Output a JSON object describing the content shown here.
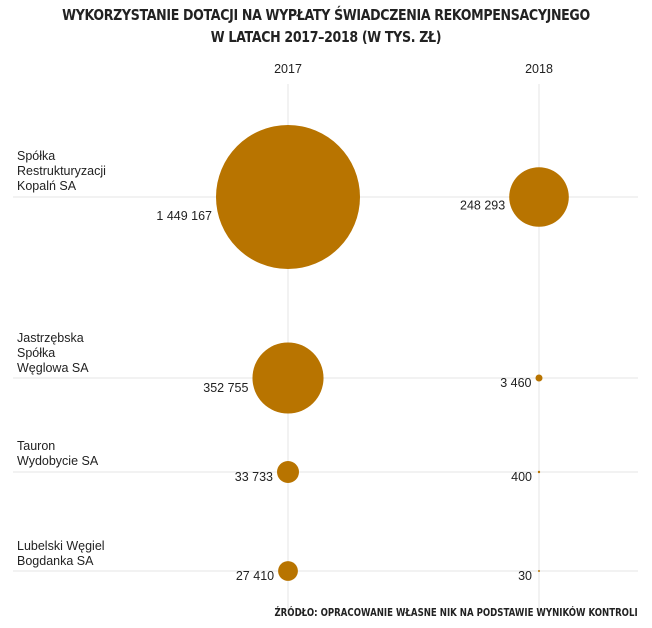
{
  "chart_data": {
    "type": "bubble",
    "title_lines": [
      "WYKORZYSTANIE DOTACJI NA WYPŁATY ŚWIADCZENIA REKOMPENSACYJNEGO",
      "W LATACH 2017–2018 (W TYS. ZŁ)"
    ],
    "columns": [
      "2017",
      "2018"
    ],
    "categories": [
      {
        "label_lines": [
          "Spółka",
          "Restrukturyzacji",
          "Kopalń SA"
        ],
        "values": [
          1449167,
          248293
        ],
        "value_labels": [
          "1 449 167",
          "248 293"
        ]
      },
      {
        "label_lines": [
          "Jastrzębska",
          "Spółka",
          "Węglowa SA"
        ],
        "values": [
          352755,
          3460
        ],
        "value_labels": [
          "352 755",
          "3 460"
        ]
      },
      {
        "label_lines": [
          "Tauron",
          "Wydobycie SA"
        ],
        "values": [
          33733,
          400
        ],
        "value_labels": [
          "33 733",
          "400"
        ]
      },
      {
        "label_lines": [
          "Lubelski Węgiel",
          "Bogdanka SA"
        ],
        "values": [
          27410,
          30
        ],
        "value_labels": [
          "27 410",
          "30"
        ]
      }
    ],
    "bubble_color": "#b87400",
    "grid_color": "#e6e6e6",
    "source": "ŹRÓDŁO: OPRACOWANIE WŁASNE NIK NA PODSTAWIE WYNIKÓW KONTROLI"
  }
}
